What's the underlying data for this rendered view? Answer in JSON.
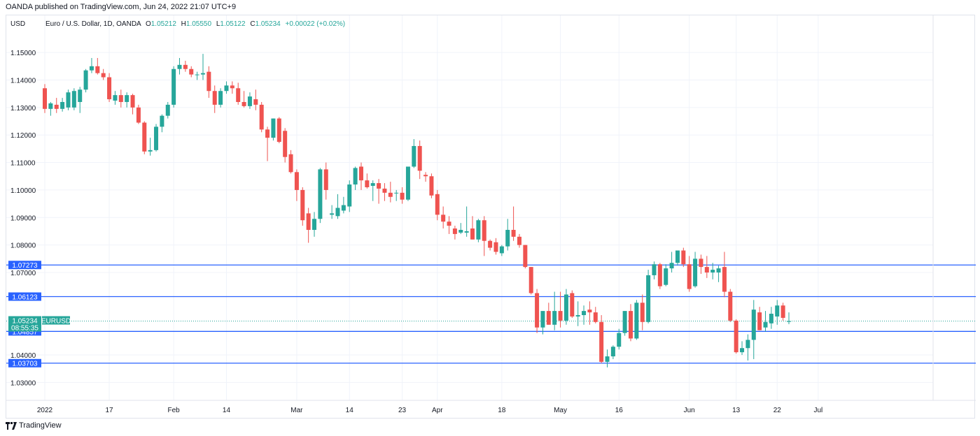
{
  "publish_line": "OANDA published on TradingView.com, Jun 24, 2022 21:07 UTC+9",
  "footer": {
    "logo_text": "TradingView"
  },
  "colors": {
    "up": "#26a69a",
    "down": "#ef5350",
    "hline": "#2962ff",
    "label_bg": "#2962ff",
    "current_bg": "#26a69a",
    "grid": "#f0f3fa"
  },
  "chart_data": {
    "type": "candlestick",
    "currency_label": "USD",
    "symbol_title": "Euro / U.S. Dollar, 1D, OANDA",
    "ohlc": {
      "o_label": "O",
      "o": "1.05212",
      "h_label": "H",
      "h": "1.05550",
      "l_label": "L",
      "l": "1.05122",
      "c_label": "C",
      "c": "1.05234",
      "change": "+0.00022 (+0.02%)"
    },
    "y_ticks": [
      "1.15000",
      "1.14000",
      "1.13000",
      "1.12000",
      "1.11000",
      "1.10000",
      "1.09000",
      "1.08000",
      "1.07000",
      "1.04000",
      "1.03000"
    ],
    "ylim": [
      1.0235,
      1.1635
    ],
    "x_ticks": [
      {
        "label": "2022",
        "idx": 0
      },
      {
        "label": "17",
        "idx": 11
      },
      {
        "label": "Feb",
        "idx": 22
      },
      {
        "label": "14",
        "idx": 31
      },
      {
        "label": "Mar",
        "idx": 43
      },
      {
        "label": "14",
        "idx": 52
      },
      {
        "label": "23",
        "idx": 61
      },
      {
        "label": "Apr",
        "idx": 67
      },
      {
        "label": "18",
        "idx": 78
      },
      {
        "label": "May",
        "idx": 88
      },
      {
        "label": "16",
        "idx": 98
      },
      {
        "label": "Jun",
        "idx": 110
      },
      {
        "label": "13",
        "idx": 118
      },
      {
        "label": "22",
        "idx": 125
      },
      {
        "label": "Jul",
        "idx": 132
      }
    ],
    "horizontal_lines": [
      "1.07273",
      "1.06123",
      "1.04857",
      "1.03703"
    ],
    "current_price": {
      "value": "1.05234",
      "countdown": "08:55:35",
      "symbol": "EURUSD"
    },
    "candles": [
      [
        1.137,
        1.1385,
        1.128,
        1.1295
      ],
      [
        1.1295,
        1.132,
        1.127,
        1.1315
      ],
      [
        1.131,
        1.1335,
        1.128,
        1.1295
      ],
      [
        1.1295,
        1.1335,
        1.1285,
        1.132
      ],
      [
        1.13,
        1.1365,
        1.129,
        1.1355
      ],
      [
        1.13,
        1.137,
        1.129,
        1.136
      ],
      [
        1.132,
        1.1375,
        1.128,
        1.1365
      ],
      [
        1.1365,
        1.144,
        1.1355,
        1.1435
      ],
      [
        1.1435,
        1.148,
        1.1425,
        1.145
      ],
      [
        1.145,
        1.148,
        1.142,
        1.1425
      ],
      [
        1.1425,
        1.144,
        1.14,
        1.141
      ],
      [
        1.141,
        1.1425,
        1.132,
        1.133
      ],
      [
        1.1325,
        1.136,
        1.131,
        1.1345
      ],
      [
        1.1345,
        1.1365,
        1.13,
        1.132
      ],
      [
        1.132,
        1.1355,
        1.13,
        1.1345
      ],
      [
        1.1345,
        1.135,
        1.1275,
        1.13
      ],
      [
        1.13,
        1.131,
        1.124,
        1.1245
      ],
      [
        1.1245,
        1.125,
        1.113,
        1.114
      ],
      [
        1.114,
        1.119,
        1.1125,
        1.1145
      ],
      [
        1.1145,
        1.124,
        1.114,
        1.123
      ],
      [
        1.123,
        1.1275,
        1.121,
        1.127
      ],
      [
        1.127,
        1.132,
        1.126,
        1.131
      ],
      [
        1.131,
        1.145,
        1.13,
        1.144
      ],
      [
        1.144,
        1.148,
        1.142,
        1.1455
      ],
      [
        1.1455,
        1.147,
        1.143,
        1.144
      ],
      [
        1.144,
        1.145,
        1.141,
        1.142
      ],
      [
        1.142,
        1.143,
        1.14,
        1.142
      ],
      [
        1.142,
        1.1495,
        1.14,
        1.1425
      ],
      [
        1.143,
        1.145,
        1.1335,
        1.136
      ],
      [
        1.136,
        1.138,
        1.128,
        1.131
      ],
      [
        1.131,
        1.137,
        1.13,
        1.136
      ],
      [
        1.136,
        1.1395,
        1.135,
        1.138
      ],
      [
        1.138,
        1.1395,
        1.135,
        1.137
      ],
      [
        1.137,
        1.139,
        1.131,
        1.132
      ],
      [
        1.132,
        1.136,
        1.13,
        1.1305
      ],
      [
        1.1305,
        1.1355,
        1.1295,
        1.134
      ],
      [
        1.133,
        1.1365,
        1.129,
        1.131
      ],
      [
        1.131,
        1.132,
        1.121,
        1.122
      ],
      [
        1.122,
        1.123,
        1.1105,
        1.119
      ],
      [
        1.119,
        1.126,
        1.118,
        1.126
      ],
      [
        1.126,
        1.1265,
        1.117,
        1.1175
      ],
      [
        1.1215,
        1.1225,
        1.11,
        1.112
      ],
      [
        1.113,
        1.1145,
        1.106,
        1.1065
      ],
      [
        1.1065,
        1.1075,
        1.096,
        1.1
      ],
      [
        1.1,
        1.101,
        1.087,
        1.089
      ],
      [
        1.0915,
        1.0935,
        1.0808,
        1.0855
      ],
      [
        1.0855,
        1.092,
        1.083,
        1.0895
      ],
      [
        1.0895,
        1.108,
        1.088,
        1.1075
      ],
      [
        1.1075,
        1.11,
        1.0965,
        1.1
      ],
      [
        1.091,
        1.0945,
        1.0895,
        1.0915
      ],
      [
        1.0905,
        1.0985,
        1.0895,
        1.0935
      ],
      [
        1.0925,
        1.0975,
        1.0915,
        1.0945
      ],
      [
        1.094,
        1.1035,
        1.092,
        1.102
      ],
      [
        1.102,
        1.1085,
        1.1,
        1.108
      ],
      [
        1.1085,
        1.11,
        1.1,
        1.1035
      ],
      [
        1.1035,
        1.106,
        1.1005,
        1.101
      ],
      [
        1.1015,
        1.1035,
        1.096,
        1.1025
      ],
      [
        1.1025,
        1.104,
        1.095,
        1.1005
      ],
      [
        1.1005,
        1.1025,
        1.096,
        1.099
      ],
      [
        1.099,
        1.103,
        1.0955,
        1.0975
      ],
      [
        1.099,
        1.1,
        1.096,
        1.099
      ],
      [
        1.099,
        1.101,
        1.095,
        1.0965
      ],
      [
        1.0965,
        1.108,
        1.096,
        1.1085
      ],
      [
        1.1085,
        1.1185,
        1.108,
        1.116
      ],
      [
        1.116,
        1.118,
        1.104,
        1.107
      ],
      [
        1.1055,
        1.1065,
        1.103,
        1.105
      ],
      [
        1.105,
        1.106,
        1.097,
        1.098
      ],
      [
        1.0985,
        1.1,
        1.089,
        1.091
      ],
      [
        1.091,
        1.094,
        1.086,
        1.0885
      ],
      [
        1.0885,
        1.0905,
        1.084,
        1.087
      ],
      [
        1.086,
        1.087,
        1.082,
        1.084
      ],
      [
        1.0845,
        1.088,
        1.084,
        1.0855
      ],
      [
        1.0845,
        1.094,
        1.083,
        1.085
      ],
      [
        1.086,
        1.0905,
        1.082,
        1.082
      ],
      [
        1.082,
        1.0895,
        1.081,
        1.089
      ],
      [
        1.089,
        1.0905,
        1.076,
        1.0815
      ],
      [
        1.0815,
        1.082,
        1.078,
        1.079
      ],
      [
        1.081,
        1.0825,
        1.0765,
        1.0775
      ],
      [
        1.077,
        1.08,
        1.076,
        1.0795
      ],
      [
        1.0795,
        1.0895,
        1.078,
        1.0855
      ],
      [
        1.0855,
        1.094,
        1.0815,
        1.083
      ],
      [
        1.083,
        1.084,
        1.079,
        1.08
      ],
      [
        1.08,
        1.08,
        1.0715,
        1.072
      ],
      [
        1.072,
        1.072,
        1.062,
        1.0625
      ],
      [
        1.0625,
        1.064,
        1.048,
        1.05
      ],
      [
        1.05,
        1.0555,
        1.0475,
        1.056
      ],
      [
        1.056,
        1.059,
        1.051,
        1.051
      ],
      [
        1.051,
        1.063,
        1.049,
        1.056
      ],
      [
        1.056,
        1.063,
        1.05,
        1.0525
      ],
      [
        1.0525,
        1.064,
        1.051,
        1.062
      ],
      [
        1.0625,
        1.0635,
        1.0535,
        1.054
      ],
      [
        1.054,
        1.0595,
        1.0505,
        1.0545
      ],
      [
        1.0545,
        1.058,
        1.051,
        1.056
      ],
      [
        1.0565,
        1.0595,
        1.051,
        1.0555
      ],
      [
        1.0555,
        1.0575,
        1.0515,
        1.052
      ],
      [
        1.052,
        1.0545,
        1.037,
        1.0375
      ],
      [
        1.0375,
        1.042,
        1.0355,
        1.0395
      ],
      [
        1.0395,
        1.0435,
        1.0385,
        1.043
      ],
      [
        1.043,
        1.0495,
        1.042,
        1.048
      ],
      [
        1.048,
        1.056,
        1.047,
        1.056
      ],
      [
        1.056,
        1.0585,
        1.045,
        1.046
      ],
      [
        1.046,
        1.06,
        1.0455,
        1.059
      ],
      [
        1.059,
        1.062,
        1.049,
        1.052
      ],
      [
        1.052,
        1.071,
        1.0515,
        1.069
      ],
      [
        1.069,
        1.074,
        1.0675,
        1.073
      ],
      [
        1.073,
        1.0735,
        1.064,
        1.065
      ],
      [
        1.0655,
        1.073,
        1.065,
        1.0715
      ],
      [
        1.0715,
        1.0775,
        1.07,
        1.0735
      ],
      [
        1.0735,
        1.078,
        1.0725,
        1.078
      ],
      [
        1.078,
        1.079,
        1.072,
        1.073
      ],
      [
        1.073,
        1.076,
        1.063,
        1.064
      ],
      [
        1.065,
        1.0775,
        1.0645,
        1.075
      ],
      [
        1.075,
        1.0765,
        1.0695,
        1.072
      ],
      [
        1.072,
        1.076,
        1.068,
        1.07
      ],
      [
        1.07,
        1.0735,
        1.0675,
        1.071
      ],
      [
        1.07,
        1.0725,
        1.0665,
        1.0715
      ],
      [
        1.072,
        1.0775,
        1.061,
        1.063
      ],
      [
        1.063,
        1.064,
        1.052,
        1.0525
      ],
      [
        1.0525,
        1.053,
        1.0405,
        1.041
      ],
      [
        1.041,
        1.045,
        1.04,
        1.0425
      ],
      [
        1.0425,
        1.0475,
        1.038,
        1.0455
      ],
      [
        1.0455,
        1.06,
        1.0385,
        1.0565
      ],
      [
        1.0555,
        1.0575,
        1.049,
        1.049
      ],
      [
        1.05,
        1.056,
        1.0485,
        1.052
      ],
      [
        1.0515,
        1.0575,
        1.0495,
        1.055
      ],
      [
        1.054,
        1.06,
        1.051,
        1.058
      ],
      [
        1.058,
        1.059,
        1.0525,
        1.0535
      ],
      [
        1.0521,
        1.0555,
        1.0512,
        1.0523
      ]
    ]
  }
}
